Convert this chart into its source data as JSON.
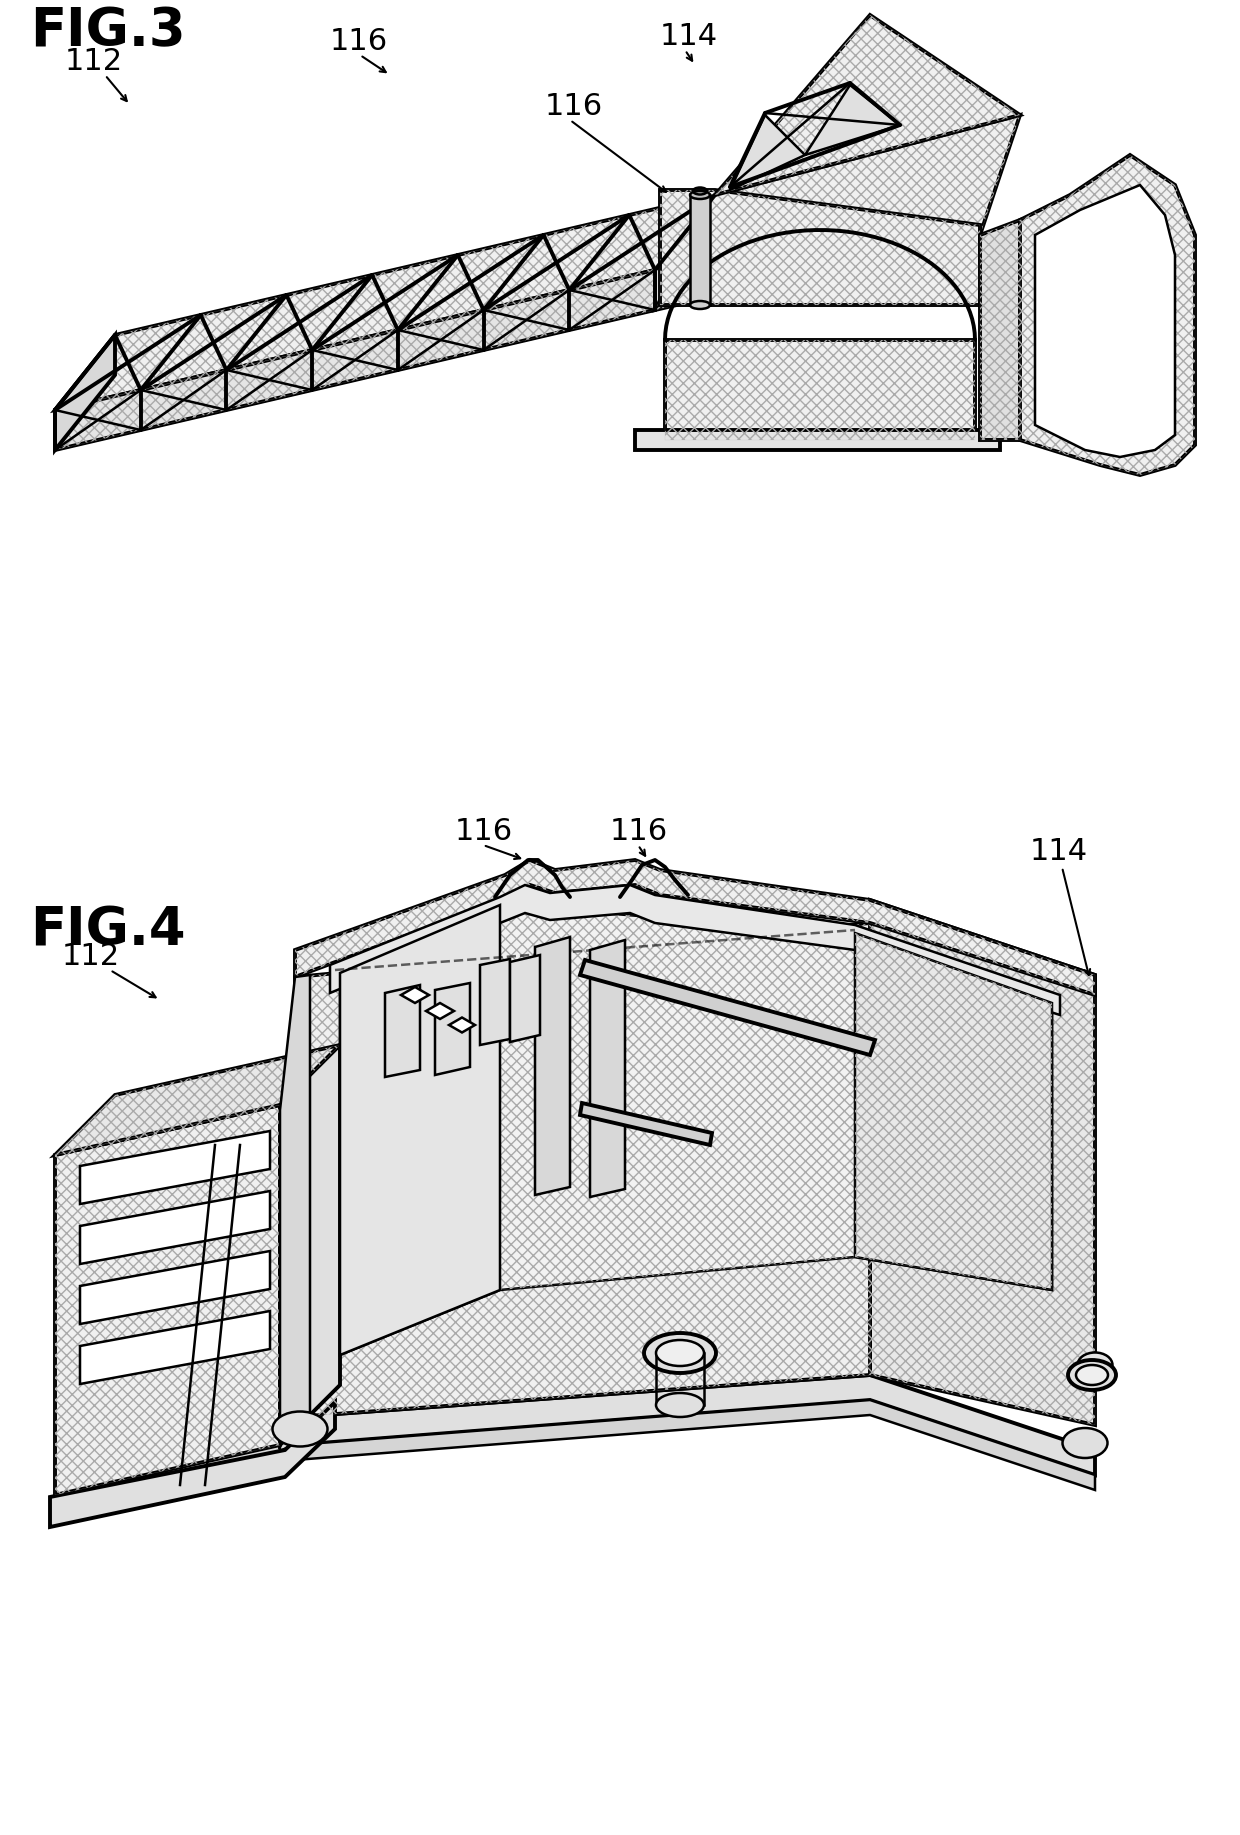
{
  "background_color": "#ffffff",
  "line_color": "#000000",
  "fig3_label": "FIG.3",
  "fig4_label": "FIG.4",
  "ref_fontsize": 22,
  "label_fontsize": 38
}
